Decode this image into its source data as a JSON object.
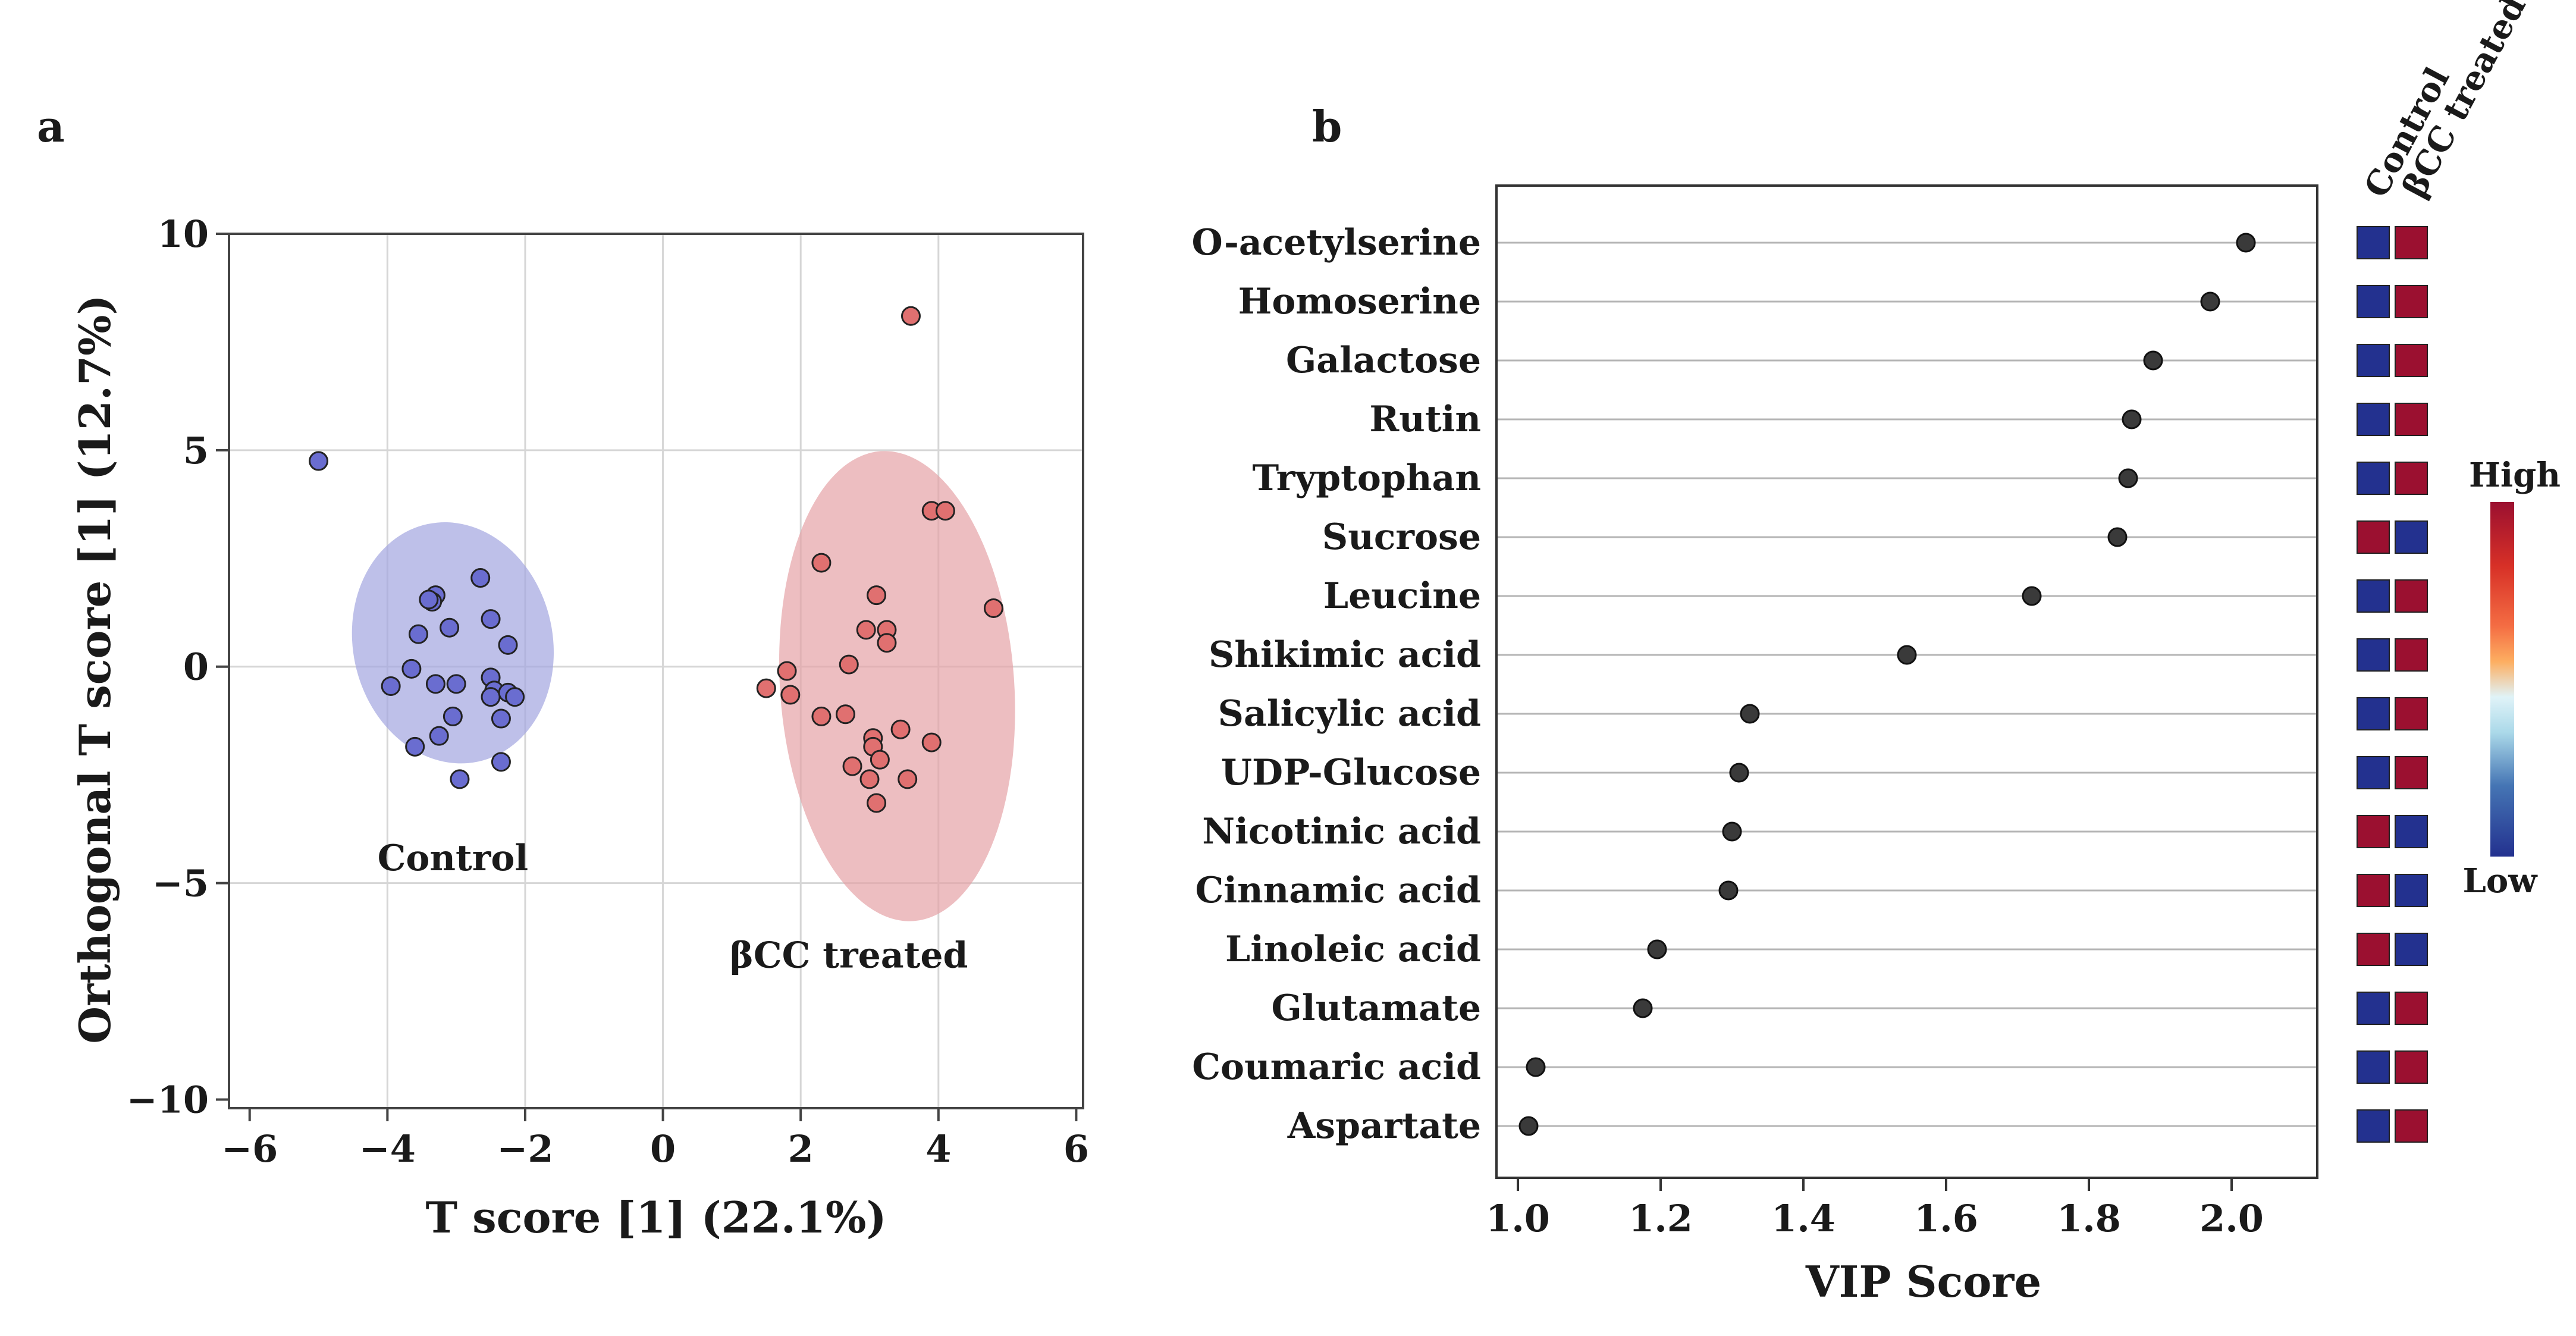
{
  "panel_a_label": "a",
  "panel_b_label": "b",
  "chart_data": [
    {
      "type": "scatter",
      "panel": "a",
      "title": "",
      "xlabel": "T score [1] (22.1%)",
      "ylabel": "Orthogonal T score [1] (12.7%)",
      "xlim": [
        -6.3,
        6.1
      ],
      "ylim": [
        -10.2,
        10
      ],
      "xticks": [
        -6,
        -4,
        -2,
        0,
        2,
        4,
        6
      ],
      "yticks": [
        10,
        5,
        0,
        -5,
        -10
      ],
      "xtick_labels": [
        "−6",
        "−4",
        "−2",
        "0",
        "2",
        "4",
        "6"
      ],
      "ytick_labels": [
        "10",
        "5",
        "0",
        "−5",
        "−10"
      ],
      "grid": true,
      "series": [
        {
          "name": "Control",
          "color": "#6a6dd0",
          "ellipse": {
            "cx": -3.05,
            "cy": 0.55,
            "rx": 1.45,
            "ry": 6.6,
            "angle_deg": 12,
            "fill": "#a3a5df"
          },
          "points": [
            [
              -5.0,
              4.75
            ],
            [
              -2.65,
              2.05
            ],
            [
              -3.3,
              1.65
            ],
            [
              -3.35,
              1.5
            ],
            [
              -3.4,
              1.55
            ],
            [
              -3.1,
              0.9
            ],
            [
              -3.55,
              0.75
            ],
            [
              -2.5,
              1.1
            ],
            [
              -2.25,
              0.5
            ],
            [
              -3.65,
              -0.05
            ],
            [
              -3.95,
              -0.45
            ],
            [
              -3.3,
              -0.4
            ],
            [
              -3.0,
              -0.4
            ],
            [
              -2.5,
              -0.25
            ],
            [
              -2.45,
              -0.55
            ],
            [
              -2.5,
              -0.7
            ],
            [
              -2.25,
              -0.6
            ],
            [
              -2.15,
              -0.7
            ],
            [
              -3.05,
              -1.15
            ],
            [
              -2.35,
              -1.2
            ],
            [
              -3.25,
              -1.6
            ],
            [
              -3.6,
              -1.85
            ],
            [
              -2.35,
              -2.2
            ],
            [
              -2.95,
              -2.6
            ]
          ]
        },
        {
          "name": "βCC treated",
          "color": "#e07070",
          "ellipse": {
            "cx": 3.4,
            "cy": -0.45,
            "rx": 1.7,
            "ry": 12.8,
            "angle_deg": 4,
            "fill": "#e6a3a7"
          },
          "points": [
            [
              3.6,
              8.1
            ],
            [
              3.9,
              3.6
            ],
            [
              4.1,
              3.6
            ],
            [
              2.3,
              2.4
            ],
            [
              3.1,
              1.65
            ],
            [
              4.8,
              1.35
            ],
            [
              2.95,
              0.85
            ],
            [
              3.25,
              0.85
            ],
            [
              3.25,
              0.55
            ],
            [
              2.7,
              0.05
            ],
            [
              1.5,
              -0.5
            ],
            [
              1.8,
              -0.1
            ],
            [
              1.85,
              -0.65
            ],
            [
              2.3,
              -1.15
            ],
            [
              2.65,
              -1.1
            ],
            [
              3.45,
              -1.45
            ],
            [
              3.05,
              -1.65
            ],
            [
              3.05,
              -1.85
            ],
            [
              3.9,
              -1.75
            ],
            [
              2.75,
              -2.3
            ],
            [
              3.15,
              -2.15
            ],
            [
              3.0,
              -2.6
            ],
            [
              3.55,
              -2.6
            ],
            [
              3.1,
              -3.15
            ]
          ]
        }
      ],
      "annotations": [
        {
          "text": "Control",
          "x": -3.05,
          "y": -4.7
        },
        {
          "text": "βCC treated",
          "x": 2.7,
          "y": -6.95
        }
      ]
    },
    {
      "type": "dot",
      "panel": "b",
      "title": "",
      "xlabel": "VIP Score",
      "ylabel": "",
      "xlim": [
        0.97,
        2.12
      ],
      "xticks": [
        1.0,
        1.2,
        1.4,
        1.6,
        1.8,
        2.0
      ],
      "xtick_labels": [
        "1.0",
        "1.2",
        "1.4",
        "1.6",
        "1.8",
        "2.0"
      ],
      "grid": false,
      "heatmap_columns": [
        "Control",
        "βCC treated"
      ],
      "colorbar": {
        "high_label": "High",
        "low_label": "Low",
        "high_color": "#9b1030",
        "low_color": "#23318f"
      },
      "heat_colors": {
        "high": "#9b1030",
        "low": "#23318f"
      },
      "items": [
        {
          "name": "O-acetylserine",
          "vip": 2.02,
          "levels": [
            "low",
            "high"
          ]
        },
        {
          "name": "Homoserine",
          "vip": 1.97,
          "levels": [
            "low",
            "high"
          ]
        },
        {
          "name": "Galactose",
          "vip": 1.89,
          "levels": [
            "low",
            "high"
          ]
        },
        {
          "name": "Rutin",
          "vip": 1.86,
          "levels": [
            "low",
            "high"
          ]
        },
        {
          "name": "Tryptophan",
          "vip": 1.855,
          "levels": [
            "low",
            "high"
          ]
        },
        {
          "name": "Sucrose",
          "vip": 1.84,
          "levels": [
            "high",
            "low"
          ]
        },
        {
          "name": "Leucine",
          "vip": 1.72,
          "levels": [
            "low",
            "high"
          ]
        },
        {
          "name": "Shikimic acid",
          "vip": 1.545,
          "levels": [
            "low",
            "high"
          ]
        },
        {
          "name": "Salicylic acid",
          "vip": 1.325,
          "levels": [
            "low",
            "high"
          ]
        },
        {
          "name": "UDP-Glucose",
          "vip": 1.31,
          "levels": [
            "low",
            "high"
          ]
        },
        {
          "name": "Nicotinic acid",
          "vip": 1.3,
          "levels": [
            "high",
            "low"
          ]
        },
        {
          "name": "Cinnamic acid",
          "vip": 1.295,
          "levels": [
            "high",
            "low"
          ]
        },
        {
          "name": "Linoleic acid",
          "vip": 1.195,
          "levels": [
            "high",
            "low"
          ]
        },
        {
          "name": "Glutamate",
          "vip": 1.175,
          "levels": [
            "low",
            "high"
          ]
        },
        {
          "name": "Coumaric acid",
          "vip": 1.025,
          "levels": [
            "low",
            "high"
          ]
        },
        {
          "name": "Aspartate",
          "vip": 1.015,
          "levels": [
            "low",
            "high"
          ]
        }
      ]
    }
  ]
}
